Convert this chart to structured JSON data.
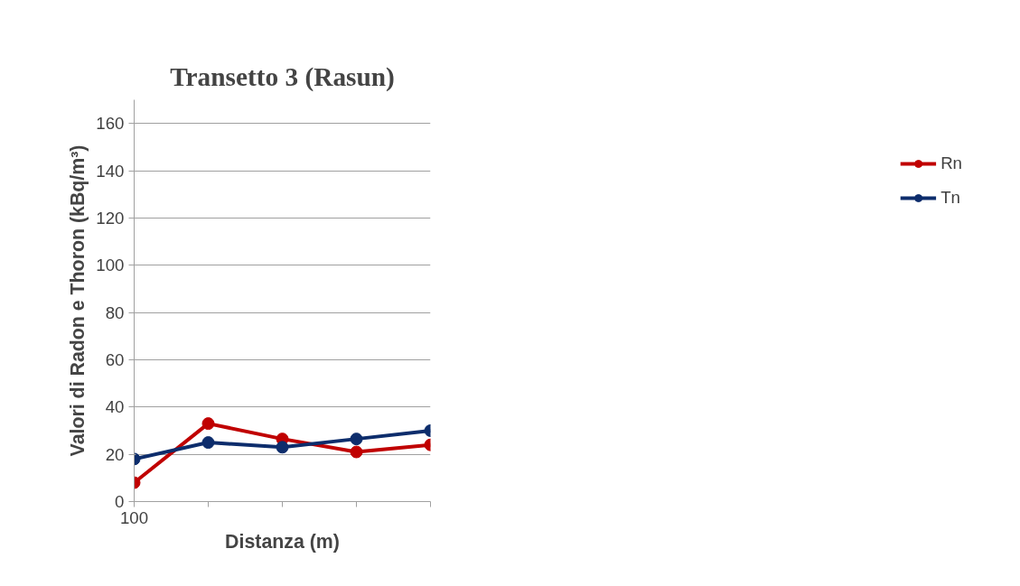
{
  "chart_data": {
    "type": "line",
    "title": "Transetto 3 (Rasun)",
    "xlabel": "Distanza (m)",
    "ylabel": "Valori di Radon e Thoron (kBq/m³)",
    "categories": [
      "100",
      null,
      null,
      null,
      null
    ],
    "series": [
      {
        "name": "Rn",
        "color": "#c00000",
        "values": [
          8,
          33,
          26.5,
          21,
          24
        ]
      },
      {
        "name": "Tn",
        "color": "#0d2d6c",
        "values": [
          18,
          25,
          23,
          26.5,
          30
        ]
      }
    ],
    "ylim": [
      0,
      170
    ],
    "yticks": [
      0,
      20,
      40,
      60,
      80,
      100,
      120,
      140,
      160
    ],
    "grid": "y",
    "legend": "right",
    "marker": "circle",
    "line_style": "solid"
  }
}
